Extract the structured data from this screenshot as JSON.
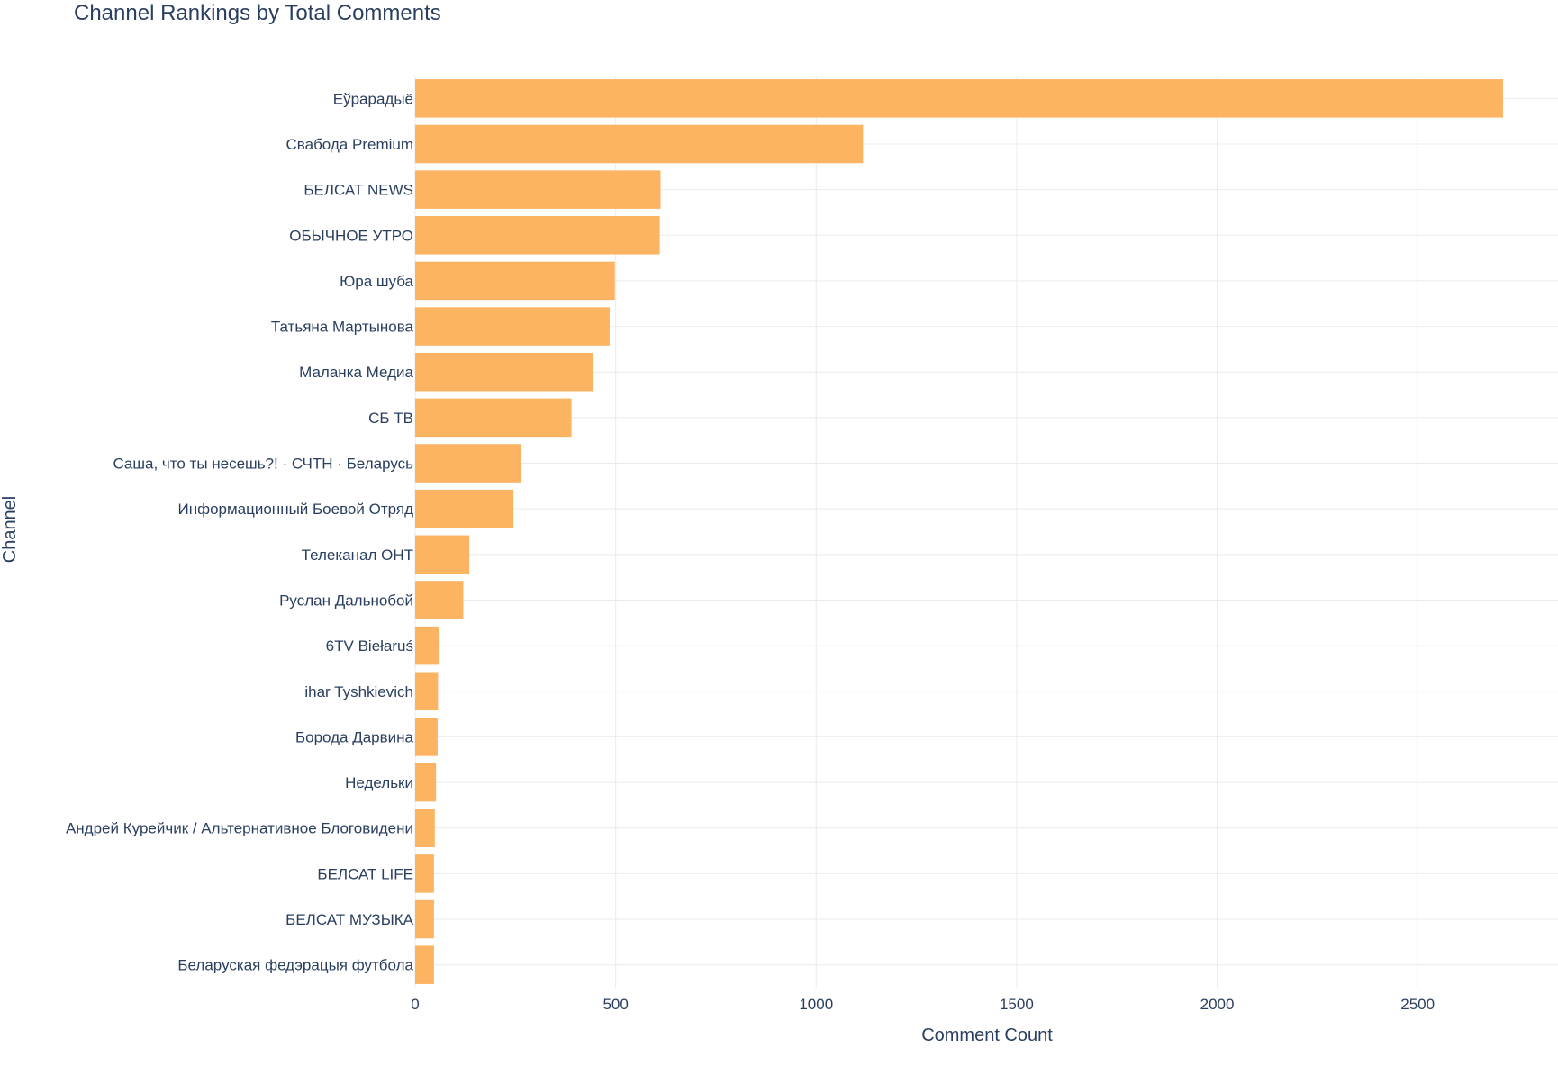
{
  "chart_data": {
    "type": "bar",
    "orientation": "horizontal",
    "title": "Channel Rankings by Total Comments",
    "xlabel": "Comment Count",
    "ylabel": "Channel",
    "xlim": [
      0,
      2850
    ],
    "xticks": [
      0,
      500,
      1000,
      1500,
      2000,
      2500
    ],
    "grid": true,
    "bar_color": "#fdb462",
    "categories": [
      "Еўрарадыё",
      "Свабода Premium",
      "БЕЛСАТ NEWS",
      "ОБЫЧНОЕ УТРО",
      "Юра шуба",
      "Татьяна Мартынова",
      "Маланка Медиа",
      "СБ ТВ",
      "Саша, что ты несешь?! · СЧТН · Беларусь",
      "Информационный Боевой Отряд",
      "Телеканал ОНТ",
      "Руслан Дальнобой",
      "6TV Biełaruś",
      "ihar Tyshkievich",
      "Борода Дарвина",
      "Недельки",
      "Андрей Курейчик / Альтернативное Блоговидени",
      "БЕЛСАТ LIFE",
      "БЕЛСАТ МУЗЫКА",
      "Беларуская федэрацыя футбола"
    ],
    "values": [
      2713,
      1117,
      612,
      610,
      498,
      485,
      443,
      390,
      265,
      245,
      135,
      120,
      60,
      57,
      56,
      52,
      49,
      47,
      47,
      47
    ]
  }
}
